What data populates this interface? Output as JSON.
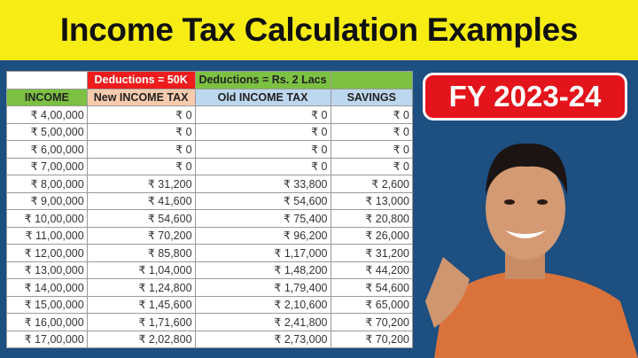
{
  "title": "Income Tax Calculation Examples",
  "badge": "FY 2023-24",
  "table": {
    "group_headers": [
      "",
      "Deductions = 50K",
      "Deductions = Rs. 2 Lacs",
      ""
    ],
    "group_colors": [
      "#ffffff",
      "#ee1c1c",
      "#7cc142",
      "#7cc142"
    ],
    "headers": [
      "INCOME",
      "New INCOME TAX",
      "Old INCOME TAX",
      "SAVINGS"
    ],
    "header_colors": [
      "#7cc142",
      "#f8cbad",
      "#bdd7ee",
      "#bdd7ee"
    ],
    "rows": [
      [
        "₹ 4,00,000",
        "₹ 0",
        "₹ 0",
        "₹ 0"
      ],
      [
        "₹ 5,00,000",
        "₹ 0",
        "₹ 0",
        "₹ 0"
      ],
      [
        "₹ 6,00,000",
        "₹ 0",
        "₹ 0",
        "₹ 0"
      ],
      [
        "₹ 7,00,000",
        "₹ 0",
        "₹ 0",
        "₹ 0"
      ],
      [
        "₹ 8,00,000",
        "₹ 31,200",
        "₹ 33,800",
        "₹ 2,600"
      ],
      [
        "₹ 9,00,000",
        "₹ 41,600",
        "₹ 54,600",
        "₹ 13,000"
      ],
      [
        "₹ 10,00,000",
        "₹ 54,600",
        "₹ 75,400",
        "₹ 20,800"
      ],
      [
        "₹ 11,00,000",
        "₹ 70,200",
        "₹ 96,200",
        "₹ 26,000"
      ],
      [
        "₹ 12,00,000",
        "₹ 85,800",
        "₹ 1,17,000",
        "₹ 31,200"
      ],
      [
        "₹ 13,00,000",
        "₹ 1,04,000",
        "₹ 1,48,200",
        "₹ 44,200"
      ],
      [
        "₹ 14,00,000",
        "₹ 1,24,800",
        "₹ 1,79,400",
        "₹ 54,600"
      ],
      [
        "₹ 15,00,000",
        "₹ 1,45,600",
        "₹ 2,10,600",
        "₹ 65,000"
      ],
      [
        "₹ 16,00,000",
        "₹ 1,71,600",
        "₹ 2,41,800",
        "₹ 70,200"
      ],
      [
        "₹ 17,00,000",
        "₹ 2,02,800",
        "₹ 2,73,000",
        "₹ 70,200"
      ]
    ]
  }
}
